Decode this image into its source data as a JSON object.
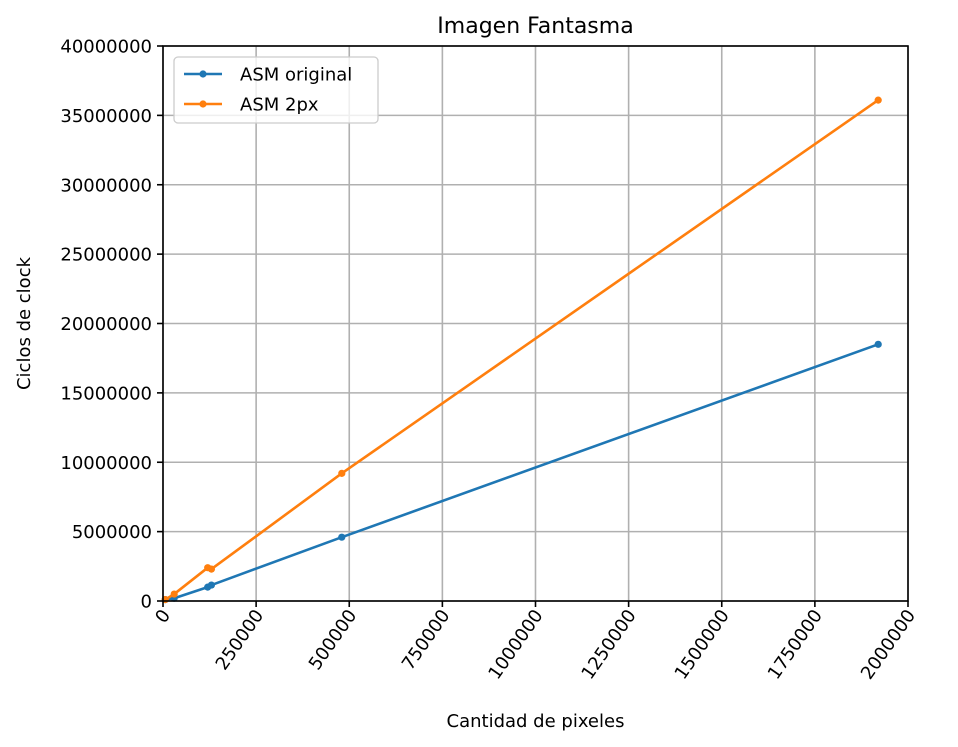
{
  "chart_data": {
    "type": "line",
    "title": "Imagen Fantasma",
    "xlabel": "Cantidad de pixeles",
    "ylabel": "Ciclos de clock",
    "xlim": [
      0,
      2000000
    ],
    "ylim": [
      0,
      40000000
    ],
    "xticks": [
      0,
      250000,
      500000,
      750000,
      1000000,
      1250000,
      1500000,
      1750000,
      2000000
    ],
    "xtick_labels": [
      "0",
      "250000",
      "500000",
      "750000",
      "1000000",
      "1250000",
      "1500000",
      "1750000",
      "2000000"
    ],
    "yticks": [
      0,
      5000000,
      10000000,
      15000000,
      20000000,
      25000000,
      30000000,
      35000000,
      40000000
    ],
    "ytick_labels": [
      "0",
      "5000000",
      "10000000",
      "15000000",
      "20000000",
      "25000000",
      "30000000",
      "35000000",
      "40000000"
    ],
    "grid": true,
    "legend_position": "top-left",
    "series": [
      {
        "name": "ASM original",
        "color": "#1f77b4",
        "x": [
          6000,
          30000,
          120000,
          130000,
          480000,
          1920000
        ],
        "y": [
          100000,
          200000,
          1000000,
          1150000,
          4600000,
          18500000
        ]
      },
      {
        "name": "ASM 2px",
        "color": "#ff7f0e",
        "x": [
          6000,
          30000,
          120000,
          130000,
          480000,
          1920000
        ],
        "y": [
          100000,
          500000,
          2400000,
          2300000,
          9200000,
          36100000
        ]
      }
    ]
  }
}
